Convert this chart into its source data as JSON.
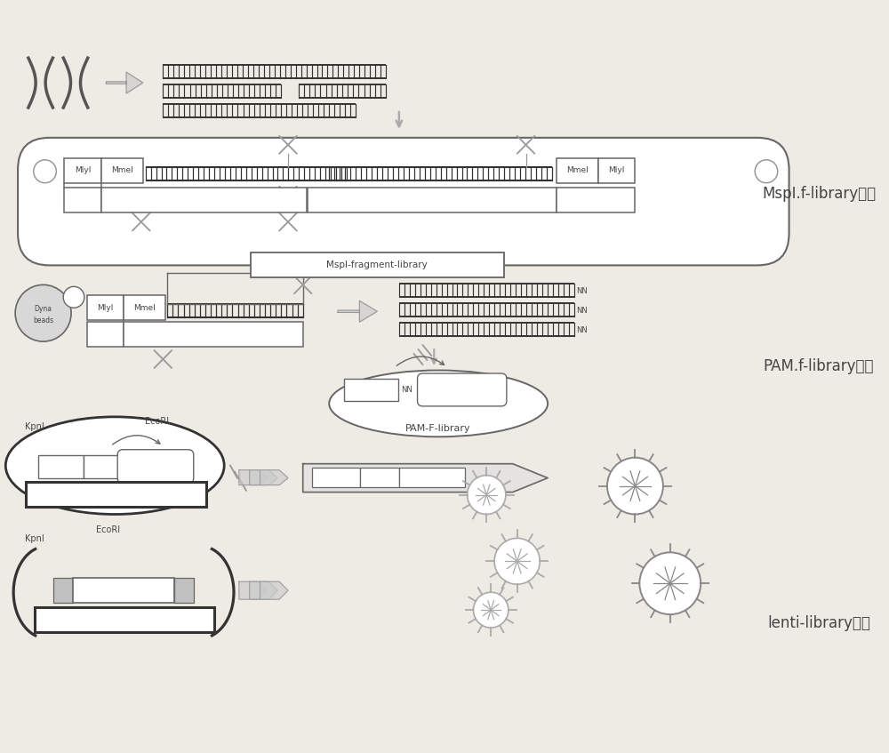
{
  "bg_color": "#eeebe5",
  "section1_label": "MspI.f-library建立",
  "section2_label": "PAM.f-library建立",
  "section3_label": "lenti-library建立",
  "label_fontsize": 12,
  "line_color": "#666666",
  "box_color": "#999999",
  "dark_color": "#444444",
  "dna_color": "#333333",
  "arrow_color": "#aaaaaa"
}
